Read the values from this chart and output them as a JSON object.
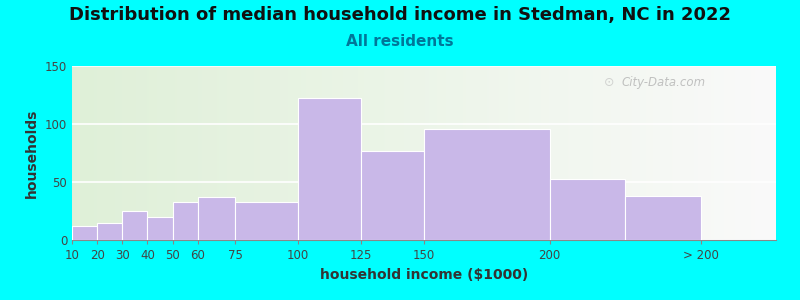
{
  "title": "Distribution of median household income in Stedman, NC in 2022",
  "subtitle": "All residents",
  "xlabel": "household income ($1000)",
  "ylabel": "households",
  "background_color": "#00FFFF",
  "bar_color": "#C9B8E8",
  "bar_edgecolor": "#C9B8E8",
  "values": [
    12,
    15,
    25,
    20,
    33,
    37,
    33,
    122,
    77,
    96,
    53,
    38
  ],
  "bar_lefts": [
    10,
    20,
    30,
    40,
    50,
    60,
    75,
    100,
    125,
    150,
    200,
    230
  ],
  "bar_widths": [
    10,
    10,
    10,
    10,
    10,
    15,
    25,
    25,
    25,
    50,
    30,
    30
  ],
  "xtick_positions": [
    10,
    20,
    30,
    40,
    50,
    60,
    75,
    100,
    125,
    150,
    200,
    260
  ],
  "xtick_labels": [
    "10",
    "20",
    "30",
    "40",
    "50",
    "60",
    "75",
    "100",
    "125",
    "150",
    "200",
    "> 200"
  ],
  "xlim": [
    10,
    290
  ],
  "ylim": [
    0,
    150
  ],
  "yticks": [
    0,
    50,
    100,
    150
  ],
  "title_fontsize": 13,
  "subtitle_fontsize": 11,
  "label_fontsize": 10,
  "tick_fontsize": 8.5,
  "watermark": "City-Data.com"
}
